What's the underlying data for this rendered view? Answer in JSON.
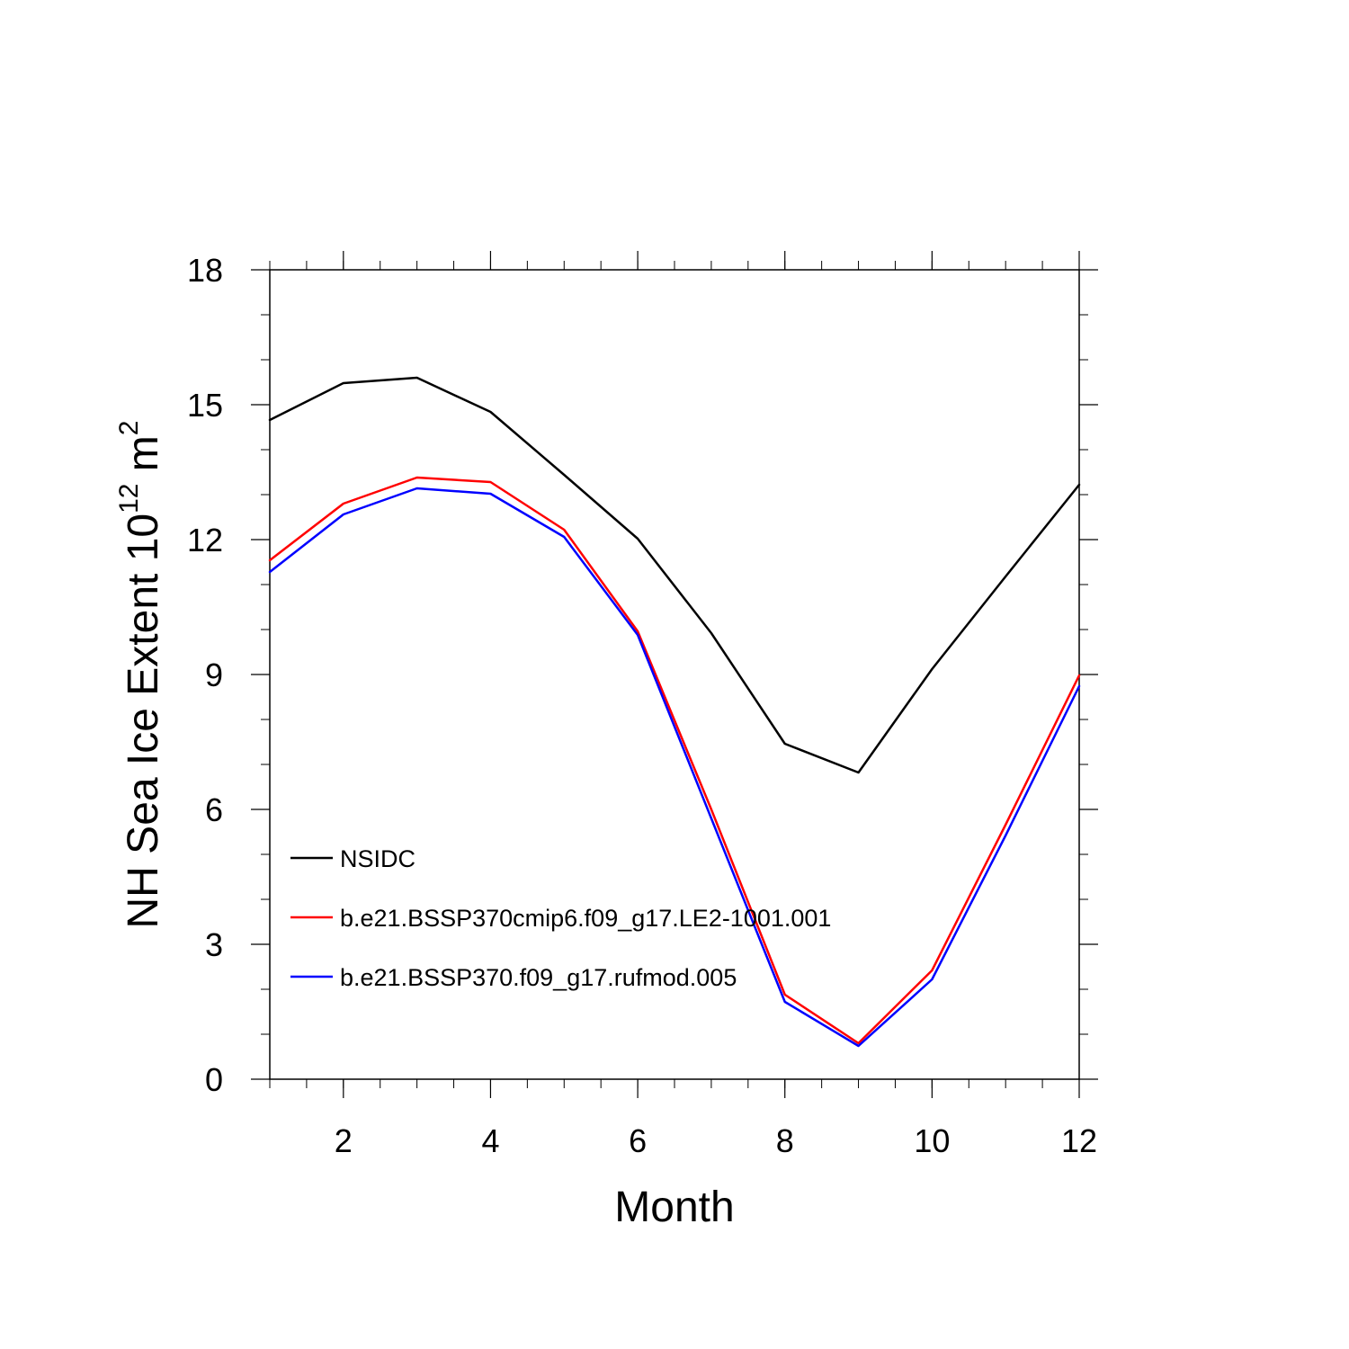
{
  "chart_data": {
    "type": "line",
    "title": "",
    "xlabel": "Month",
    "ylabel_prefix": "NH Sea Ice Extent 10",
    "ylabel_exponent": "12",
    "ylabel_unit": " m",
    "ylabel_unit_exponent": "2",
    "xlim": [
      1,
      12
    ],
    "ylim": [
      0,
      18
    ],
    "xticks": [
      2,
      4,
      6,
      8,
      10,
      12
    ],
    "yticks": [
      0,
      3,
      6,
      9,
      12,
      15,
      18
    ],
    "x": [
      1,
      2,
      3,
      4,
      5,
      6,
      7,
      8,
      9,
      10,
      11,
      12
    ],
    "legend_position": "lower-left",
    "grid": false,
    "series": [
      {
        "name": "NSIDC",
        "color": "#000000",
        "values": [
          14.66,
          15.48,
          15.6,
          14.84,
          13.44,
          12.02,
          9.92,
          7.46,
          6.82,
          9.12,
          11.18,
          13.22
        ]
      },
      {
        "name": "b.e21.BSSP370cmip6.f09_g17.LE2-1001.001",
        "color": "#ff0000",
        "values": [
          11.54,
          12.8,
          13.38,
          13.28,
          12.22,
          9.96,
          6.0,
          1.88,
          0.8,
          2.42,
          5.66,
          8.98
        ]
      },
      {
        "name": "b.e21.BSSP370.f09_g17.rufmod.005",
        "color": "#0000ff",
        "values": [
          11.28,
          12.56,
          13.14,
          13.02,
          12.06,
          9.88,
          5.8,
          1.72,
          0.74,
          2.22,
          5.42,
          8.74
        ]
      }
    ]
  }
}
